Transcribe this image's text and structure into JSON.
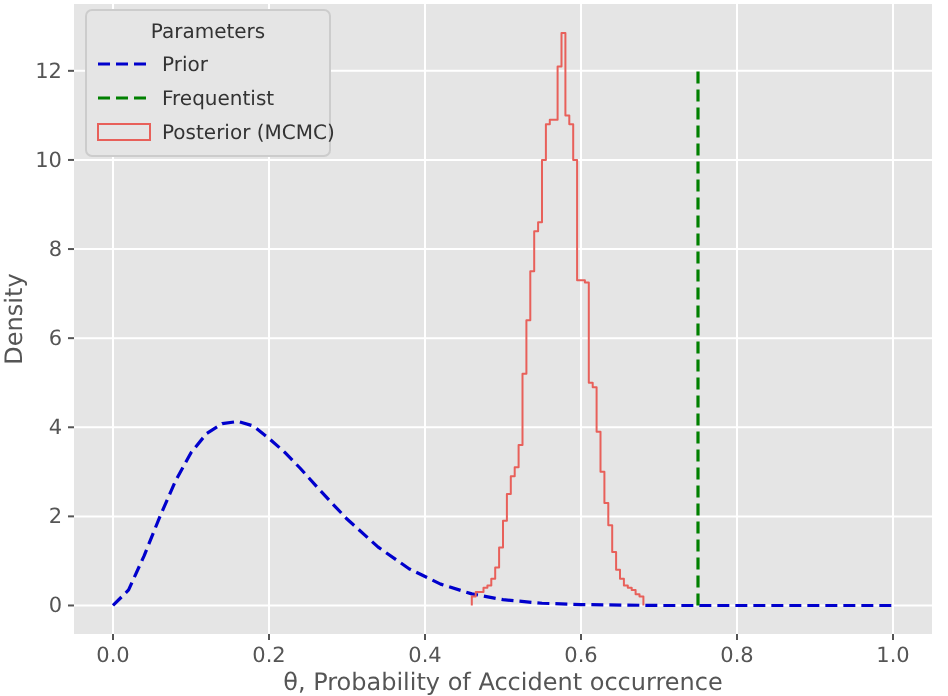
{
  "chart_data": {
    "type": "line",
    "xlabel": "θ, Probability of Accident occurrence",
    "ylabel": "Density",
    "legend_title": "Parameters",
    "xlim": [
      -0.05,
      1.05
    ],
    "ylim": [
      -0.64,
      13.5
    ],
    "xticks": [
      {
        "value": 0,
        "label": "0.0"
      },
      0.2,
      0.4,
      0.6,
      0.8,
      {
        "value": 1,
        "label": "1.0"
      }
    ],
    "yticks": [
      0,
      2,
      4,
      6,
      8,
      10,
      12
    ],
    "grid": true,
    "legend": "top left",
    "series": [
      {
        "name": "Prior",
        "line_style": "dashed",
        "color": "#0000cc",
        "x": [
          0,
          0.02,
          0.04,
          0.06,
          0.08,
          0.1,
          0.12,
          0.14,
          0.16,
          0.18,
          0.2,
          0.22,
          0.24,
          0.26,
          0.28,
          0.3,
          0.34,
          0.38,
          0.42,
          0.46,
          0.5,
          0.55,
          0.6,
          0.7,
          0.8,
          0.9,
          1.0
        ],
        "values": [
          0,
          0.35,
          1.12,
          1.99,
          2.79,
          3.43,
          3.86,
          4.08,
          4.13,
          4.03,
          3.75,
          3.44,
          3.08,
          2.69,
          2.31,
          1.94,
          1.31,
          0.82,
          0.48,
          0.26,
          0.13,
          0.05,
          0.02,
          0,
          0,
          0,
          0
        ]
      },
      {
        "name": "Frequentist",
        "line_style": "dashed",
        "color": "#008000",
        "x": [
          0.75,
          0.75
        ],
        "values": [
          0,
          12
        ]
      },
      {
        "name": "Posterior (MCMC)",
        "type": "histogram",
        "color": "#e8605a",
        "bins": [
          0.46,
          0.465,
          0.47,
          0.475,
          0.48,
          0.485,
          0.49,
          0.495,
          0.5,
          0.505,
          0.51,
          0.515,
          0.52,
          0.525,
          0.53,
          0.535,
          0.54,
          0.545,
          0.55,
          0.555,
          0.56,
          0.565,
          0.57,
          0.575,
          0.58,
          0.585,
          0.59,
          0.595,
          0.6,
          0.605,
          0.61,
          0.615,
          0.62,
          0.625,
          0.63,
          0.635,
          0.64,
          0.645,
          0.65,
          0.655,
          0.66,
          0.665,
          0.67,
          0.675,
          0.68
        ],
        "values": [
          0.2,
          0.3,
          0.3,
          0.4,
          0.45,
          0.6,
          0.85,
          1.3,
          1.9,
          2.5,
          2.9,
          3.1,
          3.6,
          5.2,
          6.4,
          7.5,
          8.4,
          8.6,
          10.0,
          10.8,
          10.9,
          10.9,
          12.1,
          12.85,
          11.0,
          10.8,
          10.0,
          7.3,
          7.3,
          7.25,
          5.0,
          4.9,
          3.9,
          3.0,
          2.3,
          1.8,
          1.2,
          0.8,
          0.6,
          0.45,
          0.4,
          0.35,
          0.25,
          0.2
        ]
      }
    ]
  }
}
